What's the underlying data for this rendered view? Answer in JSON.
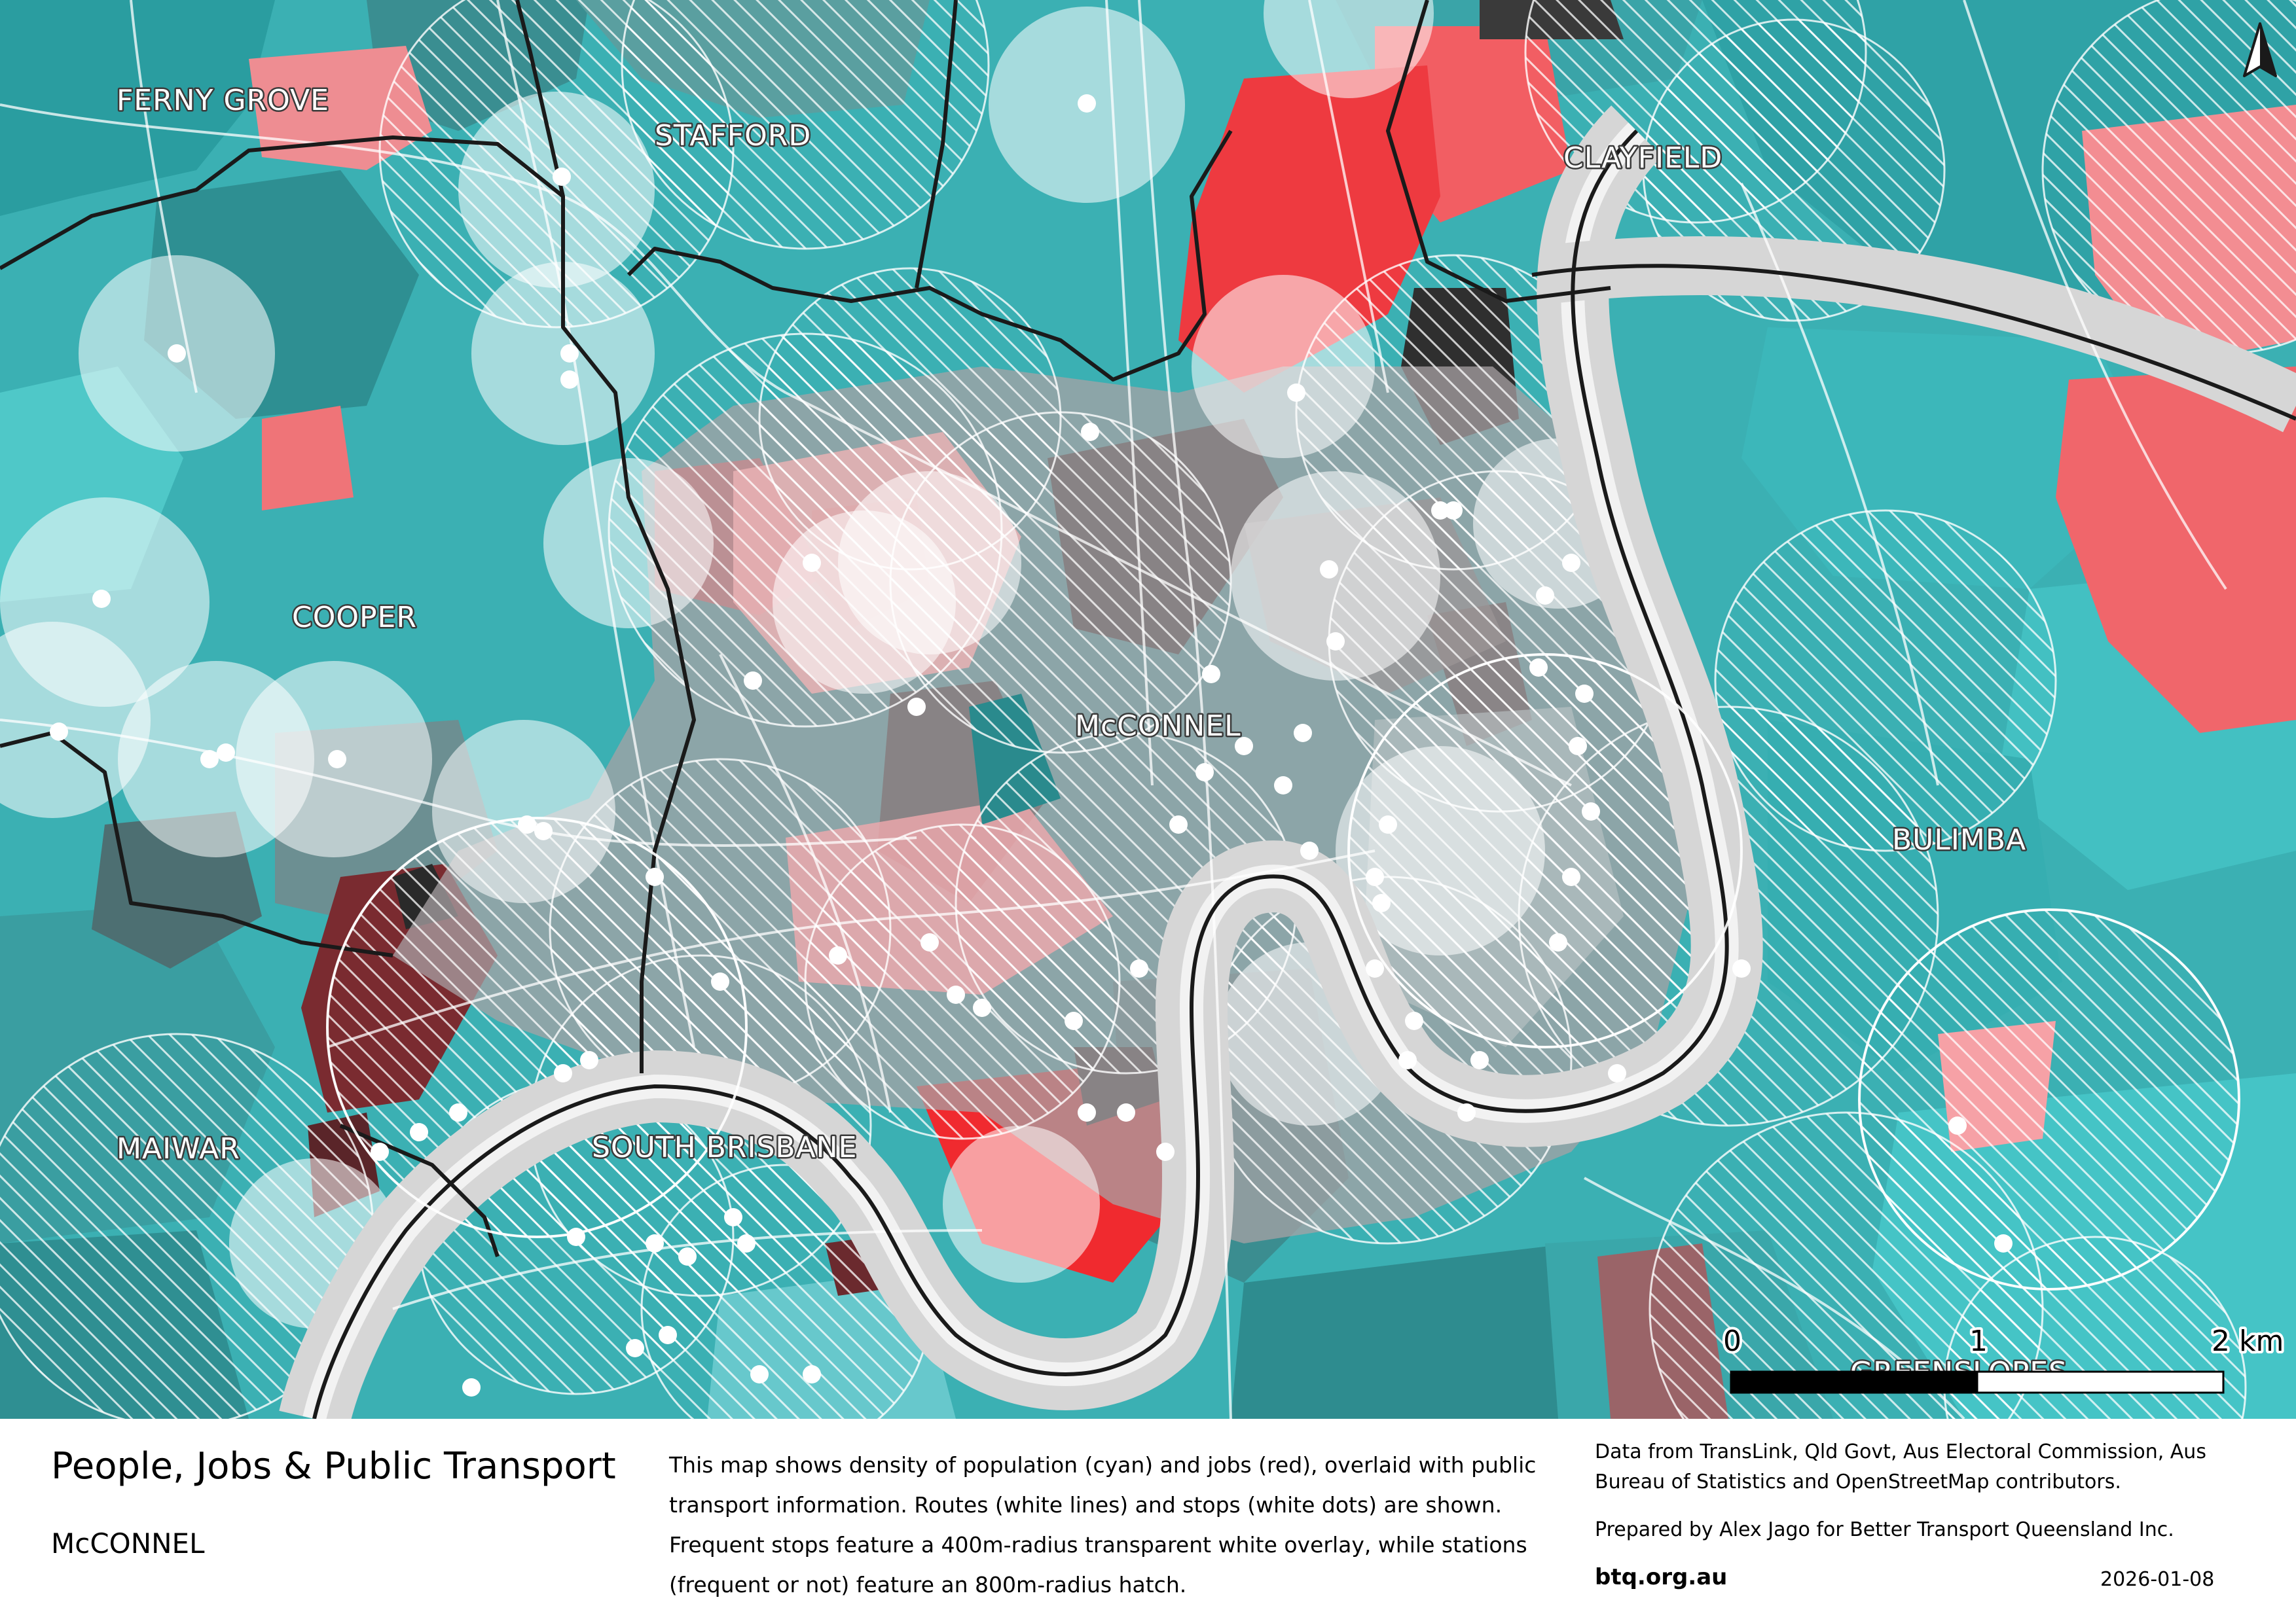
{
  "map": {
    "suburb_labels": [
      {
        "id": "ferny-grove",
        "text": "FERNY GROVE"
      },
      {
        "id": "stafford",
        "text": "STAFFORD"
      },
      {
        "id": "clayfield",
        "text": "CLAYFIELD"
      },
      {
        "id": "cooper",
        "text": "COOPER"
      },
      {
        "id": "mcconnel",
        "text": "McCONNEL"
      },
      {
        "id": "bulimba",
        "text": "BULIMBA"
      },
      {
        "id": "maiwar",
        "text": "MAIWAR"
      },
      {
        "id": "south-brisbane",
        "text": "SOUTH BRISBANE"
      },
      {
        "id": "greenslopes",
        "text": "GREENSLOPES"
      }
    ],
    "scale_bar": {
      "tick_0": "0",
      "tick_1": "1",
      "tick_2": "2 km"
    },
    "north_arrow": "north-arrow-icon",
    "colors": {
      "population": "#3bb3b5",
      "jobs": "#f05a5f",
      "river": "#cfcfcf",
      "stops": "#ffffff",
      "boundaries": "#1a1a1a"
    }
  },
  "footer": {
    "title": "People, Jobs & Public Transport",
    "subtitle": "McCONNEL",
    "description": "This map shows density of population (cyan) and jobs (red), overlaid with public transport information. Routes (white lines) and stops (white dots) are shown. Frequent stops feature a 400m-radius transparent white overlay, while stations (frequent or not) feature an 800m-radius hatch.",
    "credits": "Data from TransLink,  Qld Govt,  Aus Electoral Commission, Aus Bureau of Statistics and OpenStreetMap contributors.",
    "prepared_by": "Prepared by Alex Jago for Better Transport Queensland Inc.",
    "website": "btq.org.au",
    "date": "2026-01-08"
  }
}
